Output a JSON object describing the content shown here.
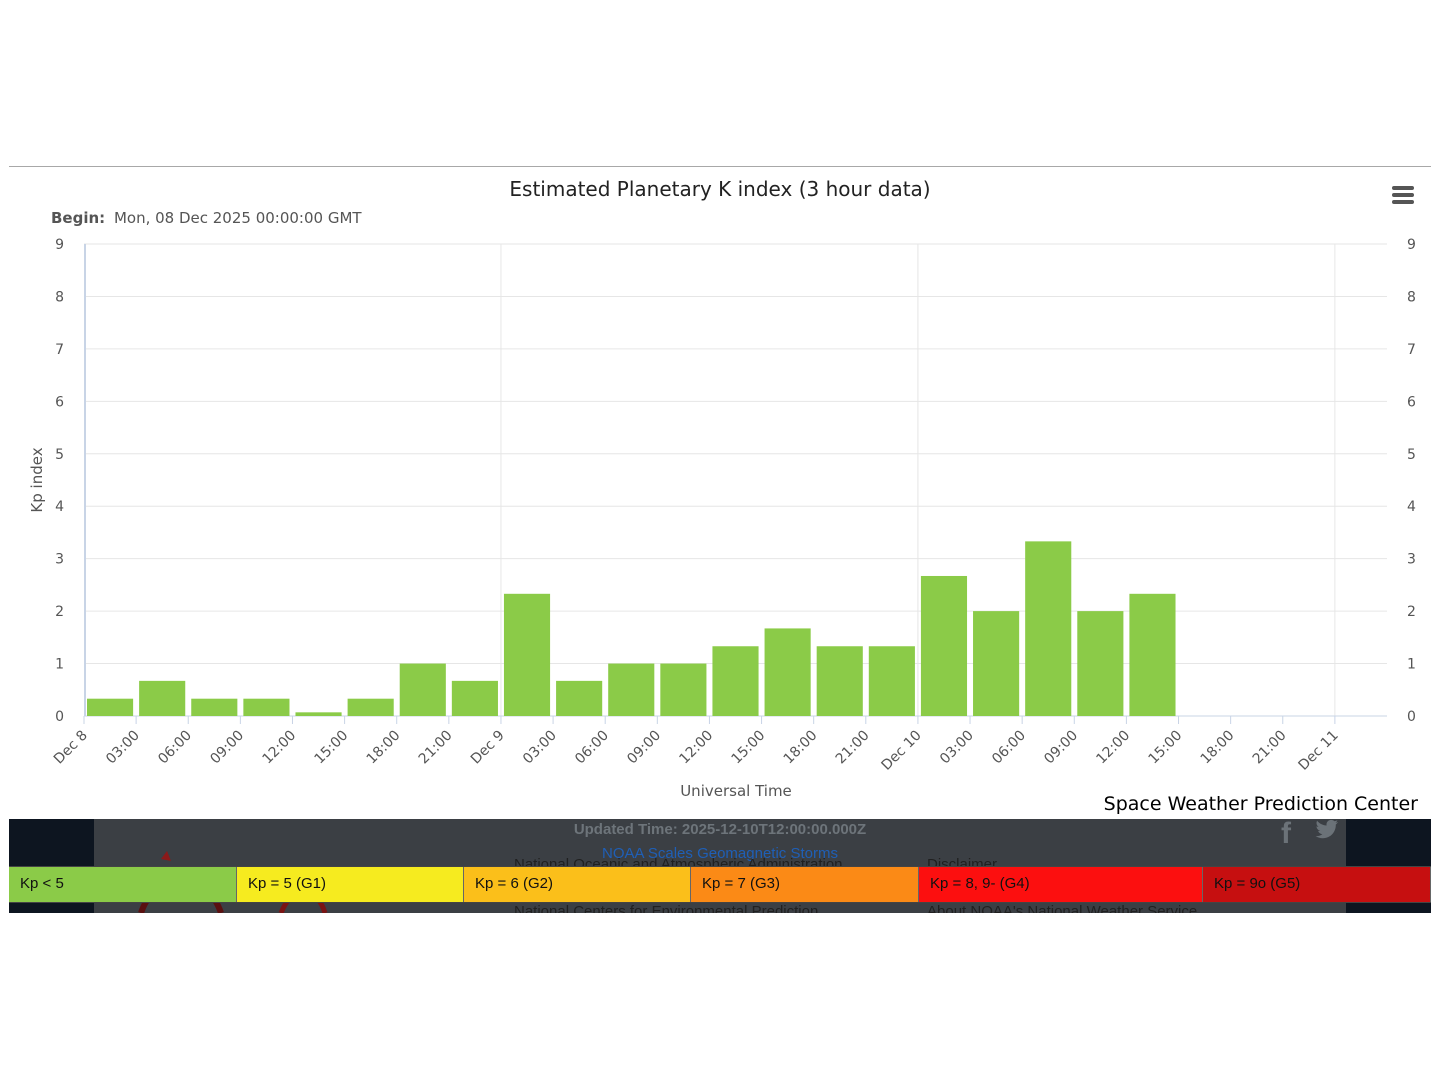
{
  "chart_data": {
    "type": "bar",
    "title": "Estimated Planetary K index (3 hour data)",
    "subtitle_label": "Begin:",
    "subtitle_value": "Mon, 08 Dec 2025 00:00:00 GMT",
    "xlabel": "Universal Time",
    "ylabel": "Kp index",
    "ylim": [
      0,
      9
    ],
    "yticks": [
      0,
      1,
      2,
      3,
      4,
      5,
      6,
      7,
      8,
      9
    ],
    "x_tick_labels": [
      "Dec 8",
      "03:00",
      "06:00",
      "09:00",
      "12:00",
      "15:00",
      "18:00",
      "21:00",
      "Dec 9",
      "03:00",
      "06:00",
      "09:00",
      "12:00",
      "15:00",
      "18:00",
      "21:00",
      "Dec 10",
      "03:00",
      "06:00",
      "09:00",
      "12:00",
      "15:00",
      "18:00",
      "21:00",
      "Dec 11"
    ],
    "categories": [
      "Dec 8 00:00",
      "Dec 8 03:00",
      "Dec 8 06:00",
      "Dec 8 09:00",
      "Dec 8 12:00",
      "Dec 8 15:00",
      "Dec 8 18:00",
      "Dec 8 21:00",
      "Dec 9 00:00",
      "Dec 9 03:00",
      "Dec 9 06:00",
      "Dec 9 09:00",
      "Dec 9 12:00",
      "Dec 9 15:00",
      "Dec 9 18:00",
      "Dec 9 21:00",
      "Dec 10 00:00",
      "Dec 10 03:00",
      "Dec 10 06:00",
      "Dec 10 09:00",
      "Dec 10 12:00"
    ],
    "values": [
      0.33,
      0.67,
      0.33,
      0.33,
      0.07,
      0.33,
      1.0,
      0.67,
      2.33,
      0.67,
      1.0,
      1.0,
      1.33,
      1.67,
      1.33,
      1.33,
      2.67,
      2.0,
      3.33,
      2.0,
      2.33
    ],
    "bar_color": "#8bcb48",
    "grid": true,
    "dual_y_axis": true
  },
  "credit": "Space Weather Prediction Center",
  "footer": {
    "updated": "Updated Time: 2025-12-10T12:00:00.000Z",
    "scales_link": "NOAA Scales Geomagnetic Storms",
    "noaa": "National Oceanic and Atmospheric Administration",
    "disclaimer": "Disclaimer",
    "ncep": "National Centers for Environmental Prediction",
    "about_nws": "About NOAA's National Weather Service",
    "facebook_icon": "facebook-icon",
    "twitter_icon": "twitter-icon"
  },
  "legend": [
    {
      "label": "Kp < 5",
      "color": "#8bcb48"
    },
    {
      "label": "Kp = 5 (G1)",
      "color": "#f6eb1f"
    },
    {
      "label": "Kp = 6 (G2)",
      "color": "#fbbf1a"
    },
    {
      "label": "Kp = 7 (G3)",
      "color": "#fb8a16"
    },
    {
      "label": "Kp = 8, 9- (G4)",
      "color": "#fc0f0f"
    },
    {
      "label": "Kp = 9o (G5)",
      "color": "#c60f10"
    }
  ]
}
